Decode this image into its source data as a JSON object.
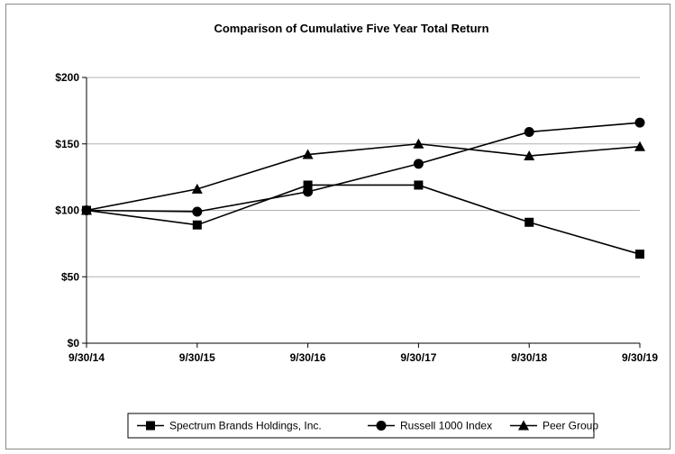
{
  "chart_data": {
    "type": "line",
    "title": "Comparison of Cumulative Five Year Total Return",
    "categories": [
      "9/30/14",
      "9/30/15",
      "9/30/16",
      "9/30/17",
      "9/30/18",
      "9/30/19"
    ],
    "ylim": [
      0,
      200
    ],
    "yticks": [
      0,
      50,
      100,
      150,
      200
    ],
    "ytick_labels": [
      "$0",
      "$50",
      "$100",
      "$150",
      "$200"
    ],
    "grid": "horizontal",
    "legend": "bottom",
    "series": [
      {
        "name": "Spectrum Brands Holdings, Inc.",
        "marker": "square",
        "values": [
          100,
          89,
          119,
          119,
          91,
          67
        ]
      },
      {
        "name": "Russell 1000 Index",
        "marker": "circle",
        "values": [
          100,
          99,
          114,
          135,
          159,
          166
        ]
      },
      {
        "name": "Peer Group",
        "marker": "triangle",
        "values": [
          100,
          116,
          142,
          150,
          141,
          148
        ]
      }
    ],
    "colors": {
      "line": "#000000",
      "grid": "#b0b0b0",
      "axis": "#000000"
    }
  }
}
